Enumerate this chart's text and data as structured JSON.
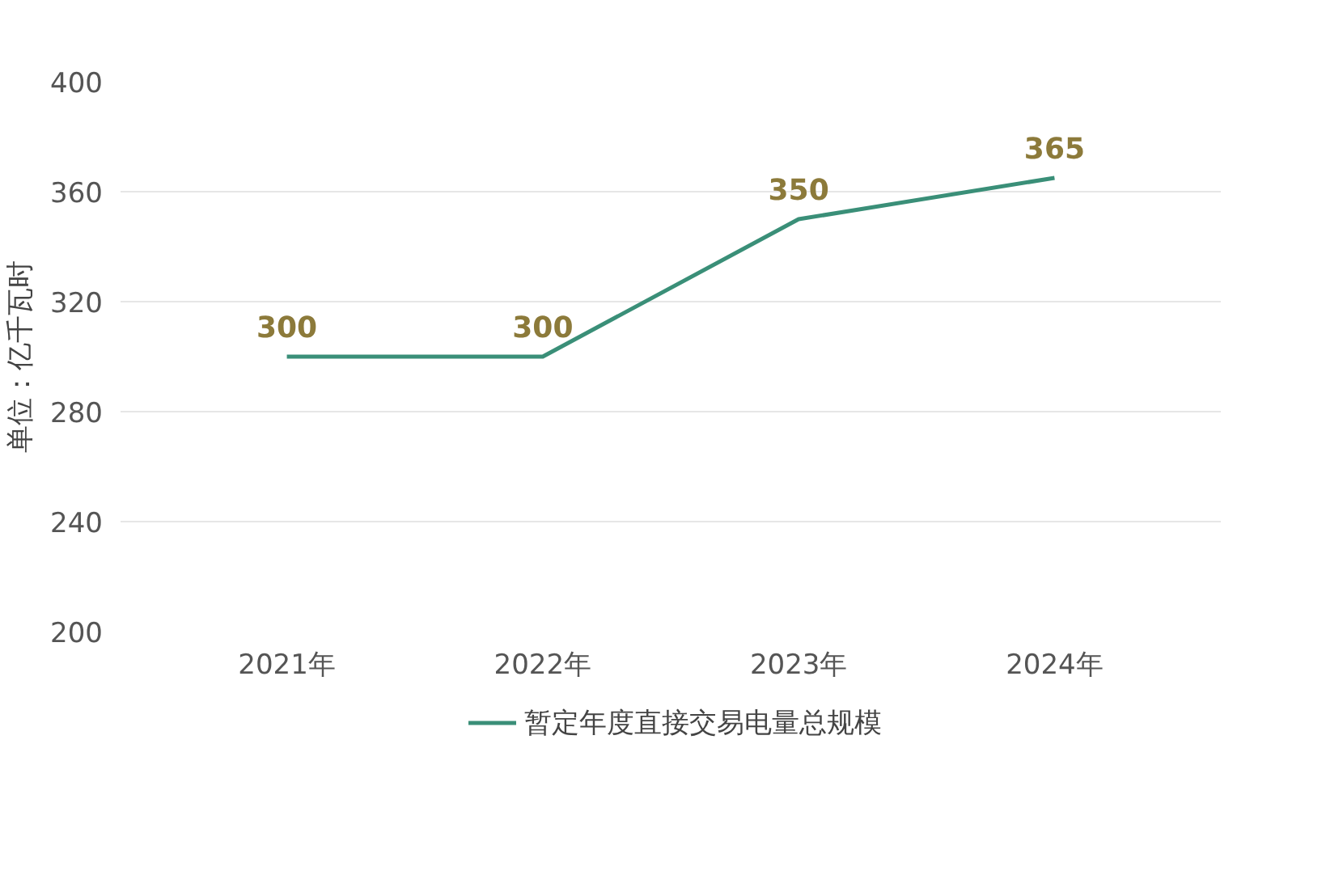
{
  "chart_data": {
    "type": "line",
    "ylabel": "单位：亿千瓦时",
    "categories": [
      "2021年",
      "2022年",
      "2023年",
      "2024年"
    ],
    "series": [
      {
        "name": "暂定年度直接交易电量总规模",
        "color": "#3a8f78",
        "values": [
          300,
          300,
          350,
          365
        ]
      }
    ],
    "ylim": [
      200,
      400
    ],
    "yticks": [
      200,
      240,
      280,
      320,
      360,
      400
    ],
    "grid": "y",
    "legend": "bottom",
    "data_labels": true,
    "marker": "none",
    "line_style": "solid"
  }
}
